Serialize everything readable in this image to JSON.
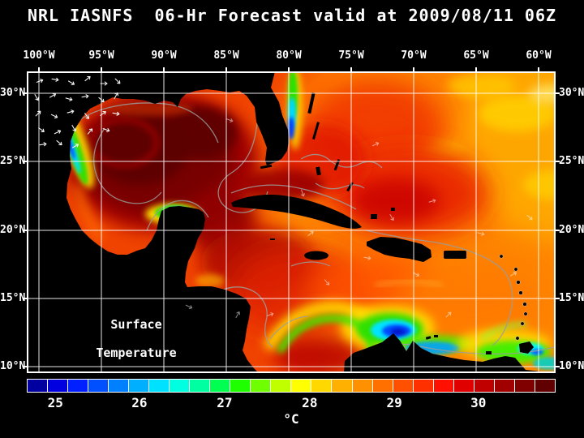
{
  "title": "NRL IASNFS  06-Hr Forecast valid at 2009/08/11 06Z",
  "map": {
    "lon_labels": [
      "100°W",
      "95°W",
      "90°W",
      "85°W",
      "80°W",
      "75°W",
      "70°W",
      "65°W",
      "60°W"
    ],
    "lat_labels": [
      "30°N",
      "25°N",
      "20°N",
      "15°N",
      "10°N"
    ],
    "annotation_line1": "Surface",
    "annotation_line2": "Temperature"
  },
  "colorbar": {
    "unit": "°C",
    "tick_labels": [
      "25",
      "26",
      "27",
      "28",
      "29",
      "30"
    ],
    "tick_positions_pct": [
      5.4,
      21.3,
      37.4,
      53.5,
      69.5,
      85.4
    ],
    "segment_colors": [
      "#0000a0",
      "#0000e0",
      "#0020ff",
      "#0050ff",
      "#0080ff",
      "#00b0ff",
      "#00e0ff",
      "#00ffe0",
      "#00ffa0",
      "#00ff50",
      "#20ff00",
      "#70ff00",
      "#c0ff00",
      "#ffff00",
      "#ffd800",
      "#ffb000",
      "#ff9000",
      "#ff7000",
      "#ff5000",
      "#ff3000",
      "#ff1000",
      "#e00000",
      "#c00000",
      "#a00000",
      "#800000",
      "#600000"
    ]
  },
  "chart_data": {
    "type": "heatmap",
    "title": "NRL IASNFS 06-Hr Forecast valid at 2009/08/11 06Z",
    "variable": "Surface Temperature",
    "unit": "°C",
    "colorbar_range_c": [
      24.7,
      31.0
    ],
    "colorbar_ticks_c": [
      25,
      26,
      27,
      28,
      29,
      30
    ],
    "x_ticks": [
      "100°W",
      "95°W",
      "90°W",
      "85°W",
      "80°W",
      "75°W",
      "70°W",
      "65°W",
      "60°W"
    ],
    "y_ticks": [
      "30°N",
      "25°N",
      "20°N",
      "15°N",
      "10°N"
    ],
    "overlays": [
      "white vector arrows",
      "gray contour lines",
      "white 5-degree grid lines",
      "black land mask"
    ],
    "regions": [
      {
        "region": "Gulf of Mexico interior",
        "approx_sst_c": 30.5
      },
      {
        "region": "Loop Current / Florida Straits",
        "approx_sst_c": 30.5
      },
      {
        "region": "Northwest Caribbean",
        "approx_sst_c": 30.0
      },
      {
        "region": "Central Caribbean",
        "approx_sst_c": 29.3
      },
      {
        "region": "Eastern Caribbean",
        "approx_sst_c": 28.8
      },
      {
        "region": "Atlantic north of Puerto Rico",
        "approx_sst_c": 29.5
      },
      {
        "region": "Northeast Atlantic corner",
        "approx_sst_c": 28.0
      },
      {
        "region": "Southern Caribbean upwelling off Venezuela",
        "approx_sst_c": 25.5
      },
      {
        "region": "Campeche Bank cold patch",
        "approx_sst_c": 26.0
      },
      {
        "region": "Texas coastal strip",
        "approx_sst_c": 26.0
      },
      {
        "region": "Florida east coast sliver",
        "approx_sst_c": 26.5
      }
    ]
  }
}
